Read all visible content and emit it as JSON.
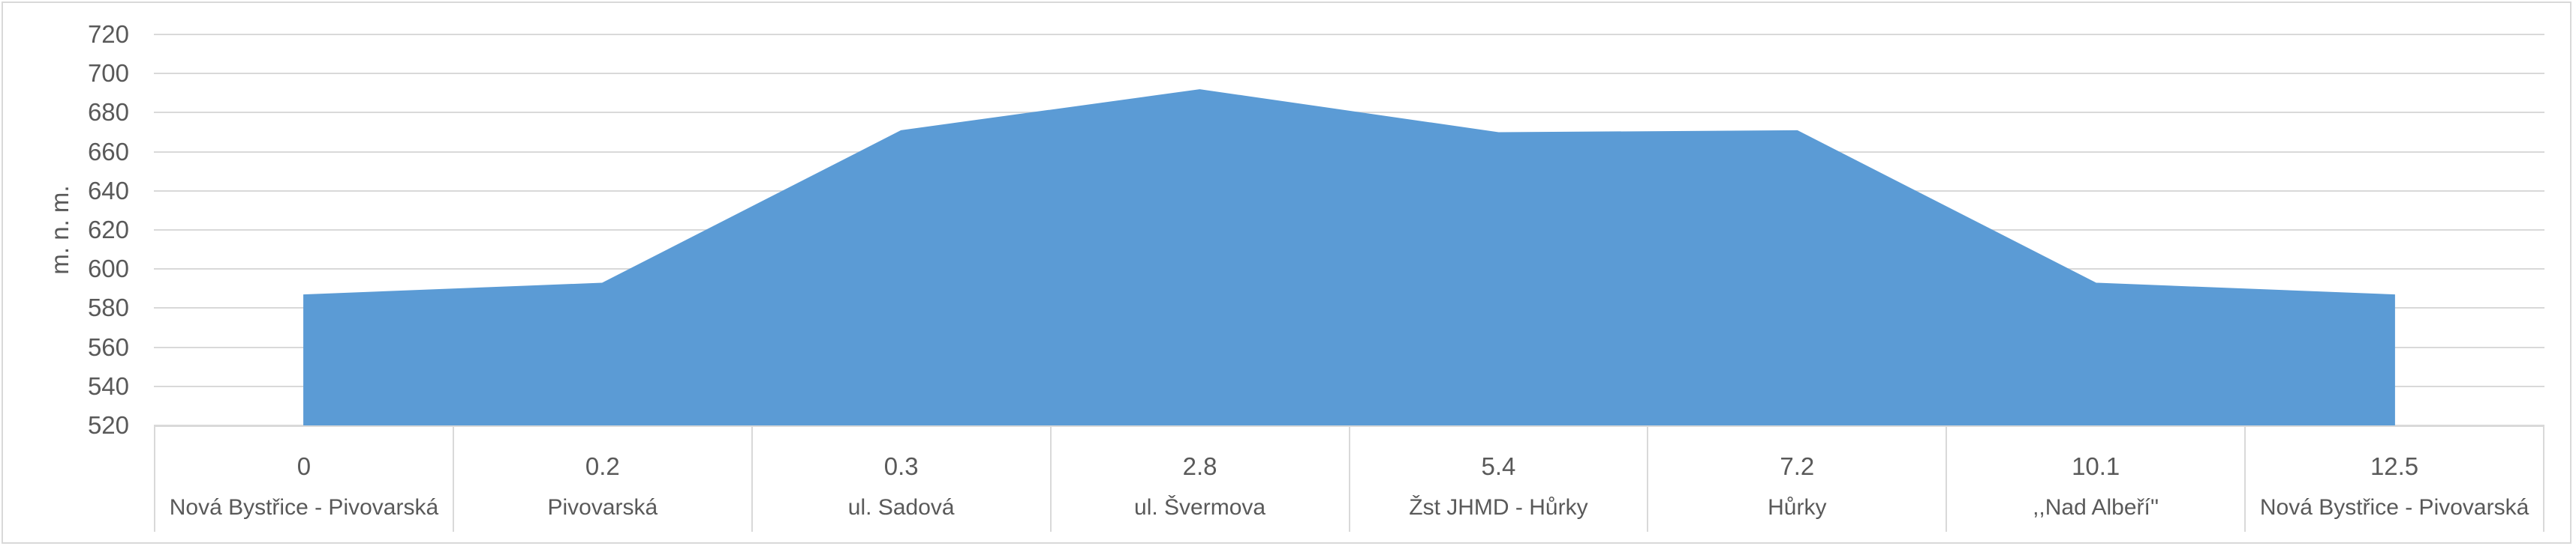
{
  "chart_data": {
    "type": "area",
    "title": "",
    "xlabel": "",
    "ylabel": "m. n. m.",
    "ylim": [
      520,
      720
    ],
    "y_ticks": [
      720,
      700,
      680,
      660,
      640,
      620,
      600,
      580,
      560,
      540,
      520
    ],
    "grid": true,
    "legend": false,
    "categories_km": [
      "0",
      "0.2",
      "0.3",
      "2.8",
      "5.4",
      "7.2",
      "10.1",
      "12.5"
    ],
    "categories_station": [
      "Nová Bystřice - Pivovarská",
      "Pivovarská",
      "ul. Sadová",
      "ul. Švermova",
      "Žst JHMD - Hůrky",
      "Hůrky",
      ",,Nad Albeří''",
      "Nová Bystřice - Pivovarská"
    ],
    "values": [
      587,
      593,
      671,
      692,
      670,
      671,
      593,
      587
    ]
  },
  "colors": {
    "area": "#5B9BD5",
    "grid": "#D9D9D9",
    "border": "#D9D9D9",
    "text": "#595959",
    "background": "#FFFFFF"
  }
}
